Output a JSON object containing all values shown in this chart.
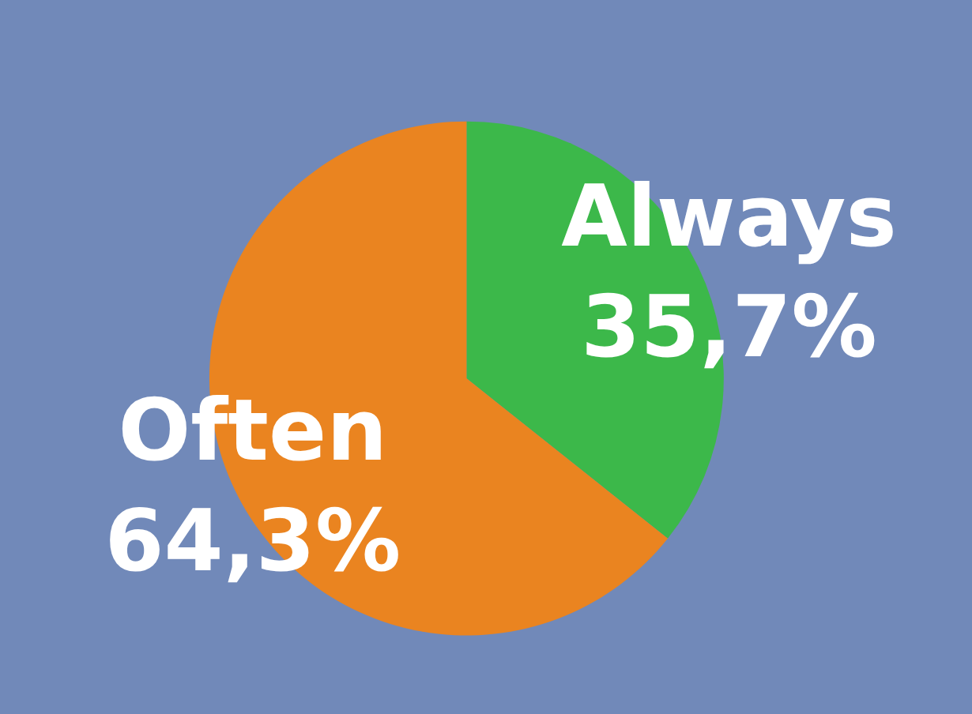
{
  "chart_data": {
    "type": "pie",
    "categories": [
      "Always",
      "Often"
    ],
    "values": [
      35.7,
      64.3
    ],
    "colors": [
      "#3cb84a",
      "#ea8420"
    ],
    "value_labels": [
      "35,7%",
      "64,3%"
    ],
    "legend": false
  }
}
